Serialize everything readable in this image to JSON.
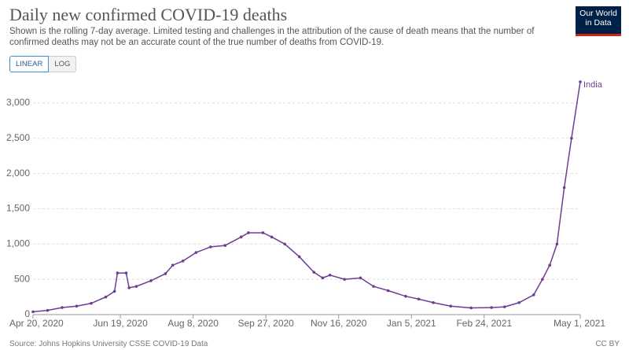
{
  "logo": "Our World in Data",
  "buttons": [
    "LINEAR",
    "LOG"
  ],
  "chart_data": {
    "type": "line",
    "title": "Daily new confirmed COVID-19 deaths",
    "subtitle": "Shown is the rolling 7-day average. Limited testing and challenges in the attribution of the cause of death means that the number of confirmed deaths may not be an accurate count of the true number of deaths from COVID-19.",
    "source": "Source: Johns Hopkins University CSSE COVID-19 Data",
    "license": "CC BY",
    "x": [
      "2020-04-20",
      "2020-04-30",
      "2020-05-10",
      "2020-05-20",
      "2020-05-30",
      "2020-06-09",
      "2020-06-15",
      "2020-06-17",
      "2020-06-23",
      "2020-06-25",
      "2020-06-30",
      "2020-07-10",
      "2020-07-20",
      "2020-07-25",
      "2020-08-01",
      "2020-08-10",
      "2020-08-20",
      "2020-08-30",
      "2020-09-10",
      "2020-09-15",
      "2020-09-25",
      "2020-10-01",
      "2020-10-10",
      "2020-10-20",
      "2020-10-30",
      "2020-11-05",
      "2020-11-10",
      "2020-11-20",
      "2020-12-01",
      "2020-12-10",
      "2020-12-20",
      "2021-01-01",
      "2021-01-10",
      "2021-01-20",
      "2021-02-01",
      "2021-02-15",
      "2021-03-01",
      "2021-03-10",
      "2021-03-20",
      "2021-03-30",
      "2021-04-05",
      "2021-04-10",
      "2021-04-15",
      "2021-04-20",
      "2021-04-25",
      "2021-05-01"
    ],
    "series": [
      {
        "name": "India",
        "color": "#6d3e91",
        "values": [
          40,
          60,
          100,
          120,
          160,
          250,
          330,
          590,
          590,
          380,
          400,
          480,
          580,
          700,
          760,
          880,
          960,
          980,
          1100,
          1160,
          1160,
          1100,
          1000,
          820,
          600,
          520,
          560,
          500,
          520,
          400,
          340,
          260,
          220,
          170,
          120,
          95,
          100,
          110,
          170,
          280,
          500,
          700,
          1000,
          1800,
          2500,
          3300
        ]
      }
    ],
    "xlim": [
      "2020-04-20",
      "2021-05-01"
    ],
    "xticks": [
      {
        "value": "2020-04-20",
        "label": "Apr 20, 2020"
      },
      {
        "value": "2020-06-19",
        "label": "Jun 19, 2020"
      },
      {
        "value": "2020-08-08",
        "label": "Aug 8, 2020"
      },
      {
        "value": "2020-09-27",
        "label": "Sep 27, 2020"
      },
      {
        "value": "2020-11-16",
        "label": "Nov 16, 2020"
      },
      {
        "value": "2021-01-05",
        "label": "Jan 5, 2021"
      },
      {
        "value": "2021-02-24",
        "label": "Feb 24, 2021"
      },
      {
        "value": "2021-05-01",
        "label": "May 1, 2021"
      }
    ],
    "ylim": [
      0,
      3300
    ],
    "yticks": [
      0,
      500,
      {
        "value": 1000,
        "label": "1,000"
      },
      {
        "value": 1500,
        "label": "1,500"
      },
      {
        "value": 2000,
        "label": "2,000"
      },
      {
        "value": 2500,
        "label": "2,500"
      },
      {
        "value": 3000,
        "label": "3,000"
      }
    ],
    "grid": true
  }
}
